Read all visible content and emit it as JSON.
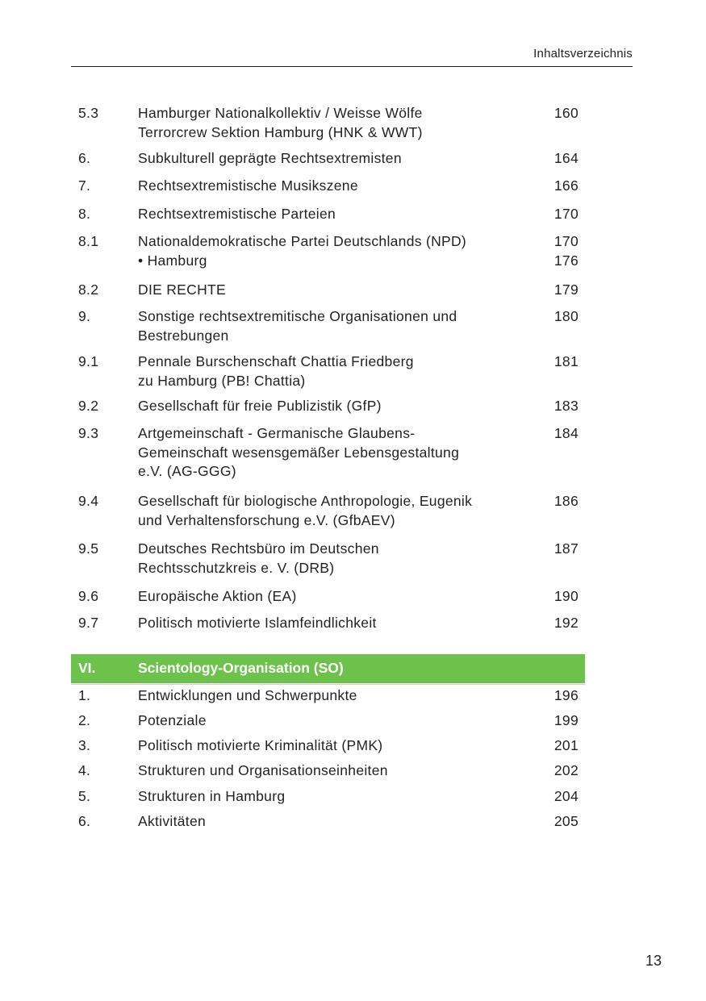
{
  "header": {
    "title": "Inhaltsverzeichnis"
  },
  "entries": [
    {
      "num": "5.3",
      "title": "Hamburger Nationalkollektiv / Weisse Wölfe\nTerrorcrew Sektion Hamburg (HNK & WWT)",
      "page": "160"
    },
    {
      "num": "6.",
      "title": "Subkulturell geprägte Rechtsextremisten",
      "page": "164"
    },
    {
      "num": "7.",
      "title": "Rechtsextremistische Musikszene",
      "page": "166"
    },
    {
      "num": "8.",
      "title": "Rechtsextremistische Parteien",
      "page": "170"
    },
    {
      "num": "8.1",
      "title": "Nationaldemokratische Partei Deutschlands (NPD)\n• Hamburg",
      "page": "170\n176"
    },
    {
      "num": "8.2",
      "title": "DIE RECHTE",
      "page": "179"
    },
    {
      "num": "9.",
      "title": "Sonstige rechtsextremitische Organisationen und\nBestrebungen",
      "page": "180"
    },
    {
      "num": "9.1",
      "title": "Pennale Burschenschaft Chattia Friedberg\nzu Hamburg (PB! Chattia)",
      "page": "181"
    },
    {
      "num": "9.2",
      "title": "Gesellschaft für freie Publizistik (GfP)",
      "page": "183"
    },
    {
      "num": "9.3",
      "title": "Artgemeinschaft - Germanische Glaubens-\nGemeinschaft wesensgemäßer Lebensgestaltung\ne.V. (AG-GGG)",
      "page": "184"
    },
    {
      "num": "9.4",
      "title": "Gesellschaft für biologische Anthropologie, Eugenik\nund Verhaltensforschung e.V. (GfbAEV)",
      "page": "186"
    },
    {
      "num": "9.5",
      "title": "Deutsches Rechtsbüro im Deutschen\nRechtsschutzkreis e. V. (DRB)",
      "page": "187"
    },
    {
      "num": "9.6",
      "title": "Europäische Aktion (EA)",
      "page": "190"
    },
    {
      "num": "9.7",
      "title": "Politisch motivierte Islamfeindlichkeit",
      "page": "192"
    }
  ],
  "section": {
    "num": "VI.",
    "title": "Scientology-Organisation (SO)",
    "color": "#6cc24a"
  },
  "section_entries": [
    {
      "num": "1.",
      "title": "Entwicklungen und Schwerpunkte",
      "page": "196"
    },
    {
      "num": "2.",
      "title": "Potenziale",
      "page": "199"
    },
    {
      "num": "3.",
      "title": "Politisch motivierte Kriminalität (PMK)",
      "page": "201"
    },
    {
      "num": "4.",
      "title": "Strukturen und Organisationseinheiten",
      "page": "202"
    },
    {
      "num": "5.",
      "title": "Strukturen in Hamburg",
      "page": "204"
    },
    {
      "num": "6.",
      "title": "Aktivitäten",
      "page": "205"
    }
  ],
  "page_number": "13"
}
